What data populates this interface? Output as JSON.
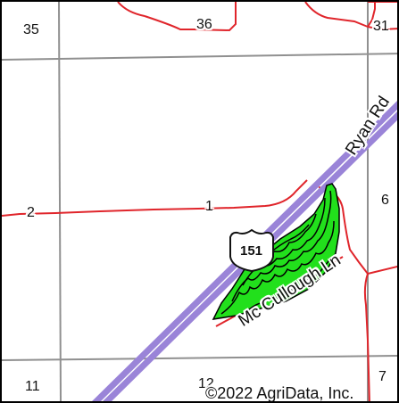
{
  "map": {
    "colors": {
      "section_lines": "#909090",
      "roads": "#e0252b",
      "highway": "#9a84d8",
      "field": "#22e01c",
      "contours": "#000000",
      "frame": "#000000"
    },
    "section_labels": {
      "s35": "35",
      "s36": "36",
      "s31": "31",
      "s2": "2",
      "s1": "1",
      "s6": "6",
      "s11": "11",
      "s12": "12",
      "s7": "7"
    },
    "roads": {
      "ryan_rd": "Ryan Rd",
      "mccullough_ln": "Mc Cullough Ln"
    },
    "highway_shield": "151",
    "copyright": "©2022 AgriData, Inc."
  }
}
